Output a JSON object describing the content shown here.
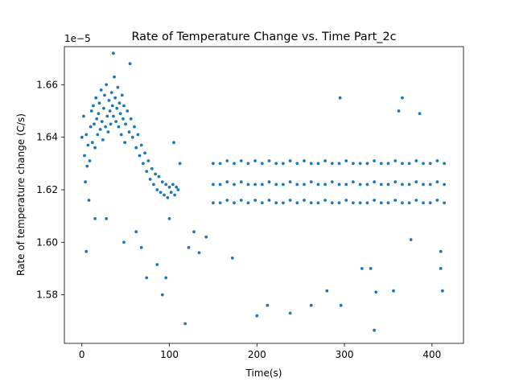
{
  "chart_data": {
    "type": "scatter",
    "title": "Rate of Temperature Change vs. Time Part_2c",
    "xlabel": "Time(s)",
    "ylabel": "Rate of temperature change (C/s)",
    "offset_label": "1e−5",
    "xlim": [
      -20,
      436
    ],
    "ylim": [
      1.5615,
      1.6745
    ],
    "x_ticks": [
      0,
      100,
      200,
      300,
      400
    ],
    "x_tick_labels": [
      "0",
      "100",
      "200",
      "300",
      "400"
    ],
    "y_ticks": [
      1.58,
      1.6,
      1.62,
      1.64,
      1.66
    ],
    "y_tick_labels": [
      "1.58",
      "1.60",
      "1.62",
      "1.64",
      "1.66"
    ],
    "grid": false,
    "marker_color": "#1f77b4",
    "series": [
      {
        "points": [
          [
            0,
            1.64
          ],
          [
            2,
            1.648
          ],
          [
            3,
            1.633
          ],
          [
            4,
            1.623
          ],
          [
            5,
            1.641
          ],
          [
            6,
            1.629
          ],
          [
            7,
            1.637
          ],
          [
            8,
            1.616
          ],
          [
            9,
            1.631
          ],
          [
            10,
            1.644
          ],
          [
            11,
            1.65
          ],
          [
            12,
            1.638
          ],
          [
            13,
            1.652
          ],
          [
            14,
            1.645
          ],
          [
            15,
            1.636
          ],
          [
            16,
            1.655
          ],
          [
            17,
            1.647
          ],
          [
            18,
            1.641
          ],
          [
            19,
            1.649
          ],
          [
            20,
            1.653
          ],
          [
            21,
            1.643
          ],
          [
            22,
            1.658
          ],
          [
            23,
            1.646
          ],
          [
            24,
            1.639
          ],
          [
            25,
            1.651
          ],
          [
            26,
            1.656
          ],
          [
            27,
            1.644
          ],
          [
            28,
            1.66
          ],
          [
            29,
            1.648
          ],
          [
            30,
            1.642
          ],
          [
            31,
            1.654
          ],
          [
            32,
            1.65
          ],
          [
            33,
            1.645
          ],
          [
            34,
            1.657
          ],
          [
            35,
            1.652
          ],
          [
            36,
            1.648
          ],
          [
            37,
            1.663
          ],
          [
            38,
            1.655
          ],
          [
            39,
            1.646
          ],
          [
            40,
            1.651
          ],
          [
            41,
            1.659
          ],
          [
            42,
            1.644
          ],
          [
            43,
            1.653
          ],
          [
            44,
            1.649
          ],
          [
            45,
            1.641
          ],
          [
            46,
            1.656
          ],
          [
            47,
            1.647
          ],
          [
            48,
            1.652
          ],
          [
            49,
            1.638
          ],
          [
            50,
            1.645
          ],
          [
            52,
            1.65
          ],
          [
            54,
            1.642
          ],
          [
            56,
            1.647
          ],
          [
            58,
            1.64
          ],
          [
            60,
            1.644
          ],
          [
            62,
            1.636
          ],
          [
            64,
            1.641
          ],
          [
            66,
            1.633
          ],
          [
            68,
            1.637
          ],
          [
            70,
            1.63
          ],
          [
            72,
            1.634
          ],
          [
            74,
            1.627
          ],
          [
            76,
            1.631
          ],
          [
            78,
            1.624
          ],
          [
            80,
            1.628
          ],
          [
            82,
            1.622
          ],
          [
            84,
            1.626
          ],
          [
            86,
            1.62
          ],
          [
            88,
            1.625
          ],
          [
            90,
            1.619
          ],
          [
            92,
            1.623
          ],
          [
            94,
            1.618
          ],
          [
            96,
            1.622
          ],
          [
            98,
            1.617
          ],
          [
            100,
            1.621
          ],
          [
            102,
            1.619
          ],
          [
            104,
            1.622
          ],
          [
            106,
            1.618
          ],
          [
            108,
            1.621
          ],
          [
            110,
            1.62
          ],
          [
            5,
            1.5965
          ],
          [
            15,
            1.609
          ],
          [
            28,
            1.609
          ],
          [
            36,
            1.672
          ],
          [
            48,
            1.6
          ],
          [
            55,
            1.668
          ],
          [
            62,
            1.604
          ],
          [
            68,
            1.598
          ],
          [
            74,
            1.5865
          ],
          [
            86,
            1.5915
          ],
          [
            92,
            1.58
          ],
          [
            96,
            1.5865
          ],
          [
            100,
            1.609
          ],
          [
            105,
            1.638
          ],
          [
            112,
            1.63
          ],
          [
            118,
            1.569
          ],
          [
            122,
            1.598
          ],
          [
            128,
            1.604
          ],
          [
            134,
            1.596
          ],
          [
            142,
            1.602
          ],
          [
            150,
            1.622
          ],
          [
            150,
            1.63
          ],
          [
            150,
            1.615
          ],
          [
            158,
            1.622
          ],
          [
            158,
            1.63
          ],
          [
            158,
            1.615
          ],
          [
            166,
            1.623
          ],
          [
            166,
            1.631
          ],
          [
            166,
            1.616
          ],
          [
            174,
            1.622
          ],
          [
            174,
            1.63
          ],
          [
            174,
            1.615
          ],
          [
            172,
            1.594
          ],
          [
            182,
            1.623
          ],
          [
            182,
            1.631
          ],
          [
            182,
            1.616
          ],
          [
            190,
            1.622
          ],
          [
            190,
            1.63
          ],
          [
            190,
            1.615
          ],
          [
            198,
            1.622
          ],
          [
            198,
            1.631
          ],
          [
            198,
            1.616
          ],
          [
            200,
            1.572
          ],
          [
            206,
            1.622
          ],
          [
            206,
            1.63
          ],
          [
            206,
            1.615
          ],
          [
            212,
            1.576
          ],
          [
            214,
            1.623
          ],
          [
            214,
            1.631
          ],
          [
            214,
            1.616
          ],
          [
            222,
            1.622
          ],
          [
            222,
            1.63
          ],
          [
            222,
            1.615
          ],
          [
            230,
            1.622
          ],
          [
            230,
            1.63
          ],
          [
            230,
            1.615
          ],
          [
            238,
            1.573
          ],
          [
            238,
            1.623
          ],
          [
            238,
            1.631
          ],
          [
            238,
            1.616
          ],
          [
            246,
            1.622
          ],
          [
            246,
            1.63
          ],
          [
            246,
            1.615
          ],
          [
            254,
            1.622
          ],
          [
            254,
            1.631
          ],
          [
            254,
            1.616
          ],
          [
            262,
            1.623
          ],
          [
            262,
            1.63
          ],
          [
            262,
            1.615
          ],
          [
            262,
            1.576
          ],
          [
            270,
            1.622
          ],
          [
            270,
            1.63
          ],
          [
            270,
            1.615
          ],
          [
            278,
            1.622
          ],
          [
            278,
            1.631
          ],
          [
            278,
            1.616
          ],
          [
            280,
            1.5815
          ],
          [
            286,
            1.623
          ],
          [
            286,
            1.63
          ],
          [
            286,
            1.615
          ],
          [
            294,
            1.622
          ],
          [
            294,
            1.63
          ],
          [
            294,
            1.615
          ],
          [
            295,
            1.655
          ],
          [
            296,
            1.576
          ],
          [
            302,
            1.622
          ],
          [
            302,
            1.631
          ],
          [
            302,
            1.616
          ],
          [
            310,
            1.623
          ],
          [
            310,
            1.63
          ],
          [
            310,
            1.615
          ],
          [
            318,
            1.622
          ],
          [
            318,
            1.63
          ],
          [
            318,
            1.615
          ],
          [
            320,
            1.59
          ],
          [
            326,
            1.622
          ],
          [
            326,
            1.63
          ],
          [
            326,
            1.615
          ],
          [
            330,
            1.59
          ],
          [
            334,
            1.623
          ],
          [
            334,
            1.631
          ],
          [
            334,
            1.616
          ],
          [
            334,
            1.5665
          ],
          [
            336,
            1.581
          ],
          [
            342,
            1.622
          ],
          [
            342,
            1.63
          ],
          [
            342,
            1.615
          ],
          [
            350,
            1.622
          ],
          [
            350,
            1.63
          ],
          [
            350,
            1.615
          ],
          [
            356,
            1.5815
          ],
          [
            358,
            1.623
          ],
          [
            358,
            1.631
          ],
          [
            358,
            1.616
          ],
          [
            362,
            1.65
          ],
          [
            366,
            1.622
          ],
          [
            366,
            1.63
          ],
          [
            366,
            1.615
          ],
          [
            366,
            1.655
          ],
          [
            374,
            1.622
          ],
          [
            374,
            1.63
          ],
          [
            374,
            1.615
          ],
          [
            376,
            1.601
          ],
          [
            382,
            1.623
          ],
          [
            382,
            1.631
          ],
          [
            382,
            1.616
          ],
          [
            386,
            1.649
          ],
          [
            390,
            1.622
          ],
          [
            390,
            1.63
          ],
          [
            390,
            1.615
          ],
          [
            398,
            1.622
          ],
          [
            398,
            1.63
          ],
          [
            398,
            1.615
          ],
          [
            406,
            1.623
          ],
          [
            406,
            1.631
          ],
          [
            406,
            1.616
          ],
          [
            410,
            1.59
          ],
          [
            410,
            1.5965
          ],
          [
            412,
            1.5815
          ],
          [
            414,
            1.622
          ],
          [
            414,
            1.63
          ],
          [
            414,
            1.615
          ]
        ]
      }
    ]
  }
}
